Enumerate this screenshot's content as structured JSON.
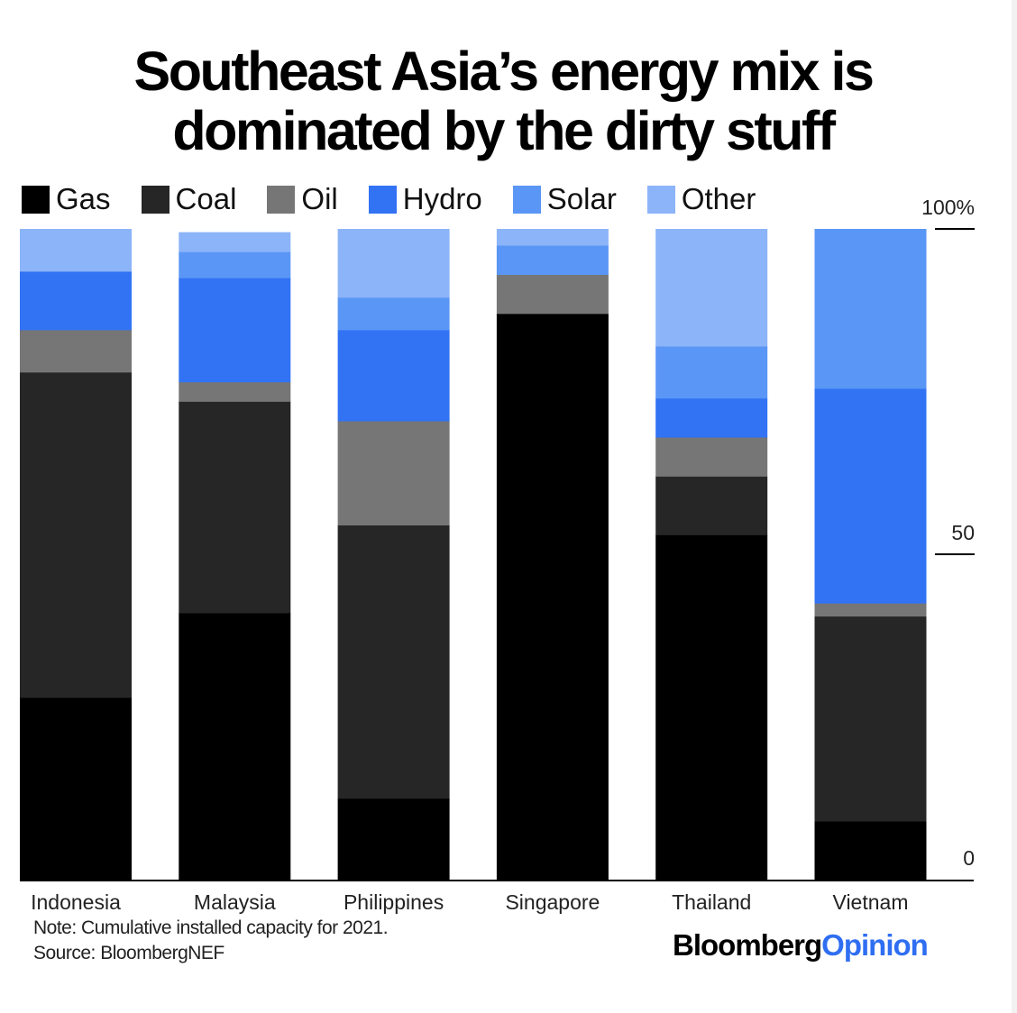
{
  "title": {
    "line1": "Southeast Asia’s energy mix is",
    "line2": "dominated by the dirty stuff"
  },
  "legend": [
    {
      "label": "Gas",
      "color": "#000000"
    },
    {
      "label": "Coal",
      "color": "#262626"
    },
    {
      "label": "Oil",
      "color": "#767676"
    },
    {
      "label": "Hydro",
      "color": "#3273f4"
    },
    {
      "label": "Solar",
      "color": "#5a96f5"
    },
    {
      "label": "Other",
      "color": "#8cb4f8"
    }
  ],
  "chart_data": {
    "type": "bar",
    "stacked": true,
    "categories": [
      "Indonesia",
      "Malaysia",
      "Philippines",
      "Singapore",
      "Thailand",
      "Vietnam"
    ],
    "series": [
      {
        "name": "Gas",
        "values": [
          28,
          41,
          12.5,
          87,
          53,
          9
        ]
      },
      {
        "name": "Coal",
        "values": [
          50,
          32.5,
          42,
          0,
          9,
          31.5
        ]
      },
      {
        "name": "Oil",
        "values": [
          6.5,
          3,
          16,
          6,
          6,
          2
        ]
      },
      {
        "name": "Hydro",
        "values": [
          9,
          16,
          14,
          0,
          6,
          33
        ]
      },
      {
        "name": "Solar",
        "values": [
          0,
          4,
          5,
          4.5,
          8,
          24.5
        ]
      },
      {
        "name": "Other",
        "values": [
          6.5,
          3,
          10.5,
          2.5,
          18,
          0
        ]
      }
    ],
    "ylim": [
      0,
      100
    ],
    "yticks": [
      {
        "value": 100,
        "label": "100%"
      },
      {
        "value": 50,
        "label": "50"
      },
      {
        "value": 0,
        "label": "0"
      }
    ]
  },
  "note": "Note: Cumulative installed capacity for 2021.",
  "source": "Source: BloombergNEF",
  "brand": {
    "part1": "Bloomberg",
    "part2": "Opinion"
  }
}
